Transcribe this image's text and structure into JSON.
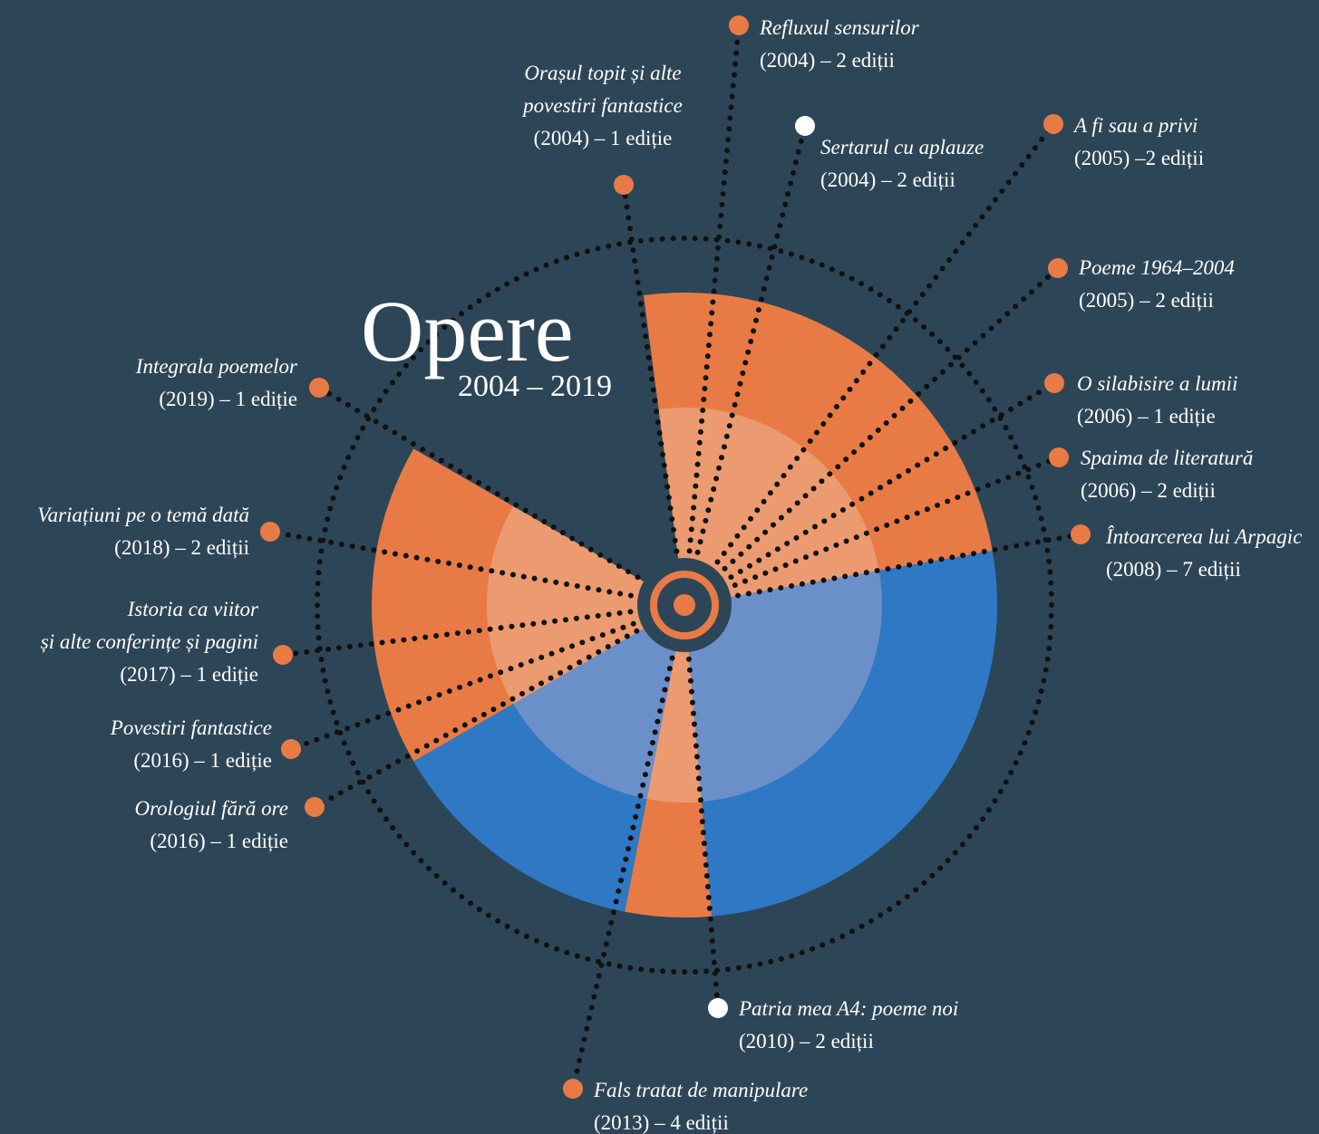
{
  "title": "Opere",
  "subtitle": "2004 – 2019",
  "items": [
    {
      "title": [
        "Refluxul sensurilor"
      ],
      "detail": "(2004) – 2 ediții"
    },
    {
      "title": [
        "Orașul topit și alte",
        "povestiri fantastice"
      ],
      "detail": "(2004) – 1 ediție"
    },
    {
      "title": [
        "Sertarul cu aplauze"
      ],
      "detail": "(2004) – 2 ediții"
    },
    {
      "title": [
        "A fi sau a privi"
      ],
      "detail": "(2005) –2 ediții"
    },
    {
      "title": [
        "Poeme 1964–2004"
      ],
      "detail": "(2005) – 2 ediții"
    },
    {
      "title": [
        "O silabisire a lumii"
      ],
      "detail": "(2006) – 1 ediție"
    },
    {
      "title": [
        "Spaima de literatură"
      ],
      "detail": "(2006) – 2 ediții"
    },
    {
      "title": [
        "Întoarcerea lui Arpagic"
      ],
      "detail": "(2008) – 7 ediții"
    },
    {
      "title": [
        "Patria mea A4: poeme noi"
      ],
      "detail": "(2010) – 2 ediții"
    },
    {
      "title": [
        "Fals tratat de manipulare"
      ],
      "detail": "(2013) – 4 ediții"
    },
    {
      "title": [
        "Orologiul fără ore"
      ],
      "detail": "(2016) – 1 ediție"
    },
    {
      "title": [
        "Povestiri fantastice"
      ],
      "detail": "(2016) – 1 ediție"
    },
    {
      "title": [
        "Istoria ca viitor",
        "și alte conferințe și pagini"
      ],
      "detail": "(2017) – 1 ediție"
    },
    {
      "title": [
        "Variațiuni pe o temă dată"
      ],
      "detail": "(2018) – 2 ediții"
    },
    {
      "title": [
        "Integrala poemelor"
      ],
      "detail": "(2019) – 1 ediție"
    }
  ]
}
